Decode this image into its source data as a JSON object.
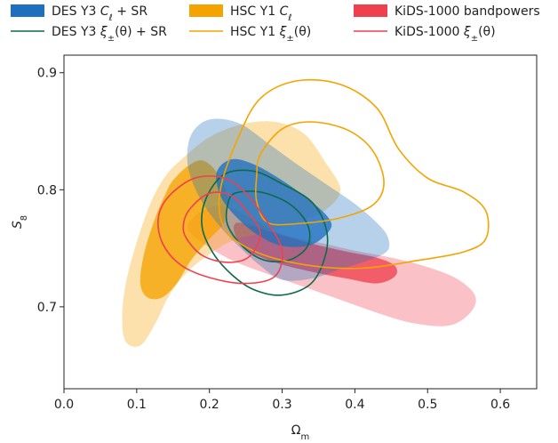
{
  "chart_data": {
    "type": "contour",
    "xlabel": "Ω",
    "xlabel_sub": "m",
    "ylabel": "S",
    "ylabel_sub": "8",
    "xlim": [
      0.0,
      0.65
    ],
    "ylim": [
      0.63,
      0.915
    ],
    "x_ticks": [
      0.0,
      0.1,
      0.2,
      0.3,
      0.4,
      0.5,
      0.6
    ],
    "x_tick_labels": [
      "0.0",
      "0.1",
      "0.2",
      "0.3",
      "0.4",
      "0.5",
      "0.6"
    ],
    "y_ticks": [
      0.7,
      0.8,
      0.9
    ],
    "y_tick_labels": [
      "0.7",
      "0.8",
      "0.9"
    ],
    "grid": false,
    "legend_position": "top",
    "colors": {
      "des": "#1f6fbf",
      "des_line": "#0b6b4a",
      "hsc": "#f5a300",
      "kids": "#ef404f"
    },
    "legend": [
      {
        "style": "filled",
        "color_key": "des",
        "prefix": "DES Y3 ",
        "math": "C",
        "math_sub": "ℓ",
        "suffix": " + SR"
      },
      {
        "style": "filled",
        "color_key": "hsc",
        "prefix": "HSC Y1 ",
        "math": "C",
        "math_sub": "ℓ",
        "suffix": ""
      },
      {
        "style": "filled",
        "color_key": "kids",
        "prefix": "KiDS-1000 bandpowers",
        "math": "",
        "math_sub": "",
        "suffix": ""
      },
      {
        "style": "line",
        "color_key": "des_line",
        "prefix": "DES Y3 ",
        "math": "ξ",
        "math_sub": "±",
        "suffix": "(θ) + SR"
      },
      {
        "style": "line",
        "color_key": "hsc",
        "prefix": "HSC Y1 ",
        "math": "ξ",
        "math_sub": "±",
        "suffix": "(θ)"
      },
      {
        "style": "line",
        "color_key": "kids",
        "prefix": "KiDS-1000 ",
        "math": "ξ",
        "math_sub": "±",
        "suffix": "(θ)"
      }
    ],
    "series": [
      {
        "legend_index": 2,
        "style": "filled",
        "color_key": "kids",
        "level": "95%",
        "contour": [
          [
            0.19,
            0.782
          ],
          [
            0.22,
            0.786
          ],
          [
            0.26,
            0.775
          ],
          [
            0.3,
            0.762
          ],
          [
            0.35,
            0.755
          ],
          [
            0.4,
            0.748
          ],
          [
            0.45,
            0.742
          ],
          [
            0.5,
            0.734
          ],
          [
            0.54,
            0.724
          ],
          [
            0.565,
            0.71
          ],
          [
            0.56,
            0.696
          ],
          [
            0.53,
            0.684
          ],
          [
            0.48,
            0.686
          ],
          [
            0.43,
            0.695
          ],
          [
            0.38,
            0.706
          ],
          [
            0.33,
            0.717
          ],
          [
            0.28,
            0.728
          ],
          [
            0.23,
            0.74
          ],
          [
            0.19,
            0.755
          ],
          [
            0.17,
            0.768
          ]
        ]
      },
      {
        "legend_index": 2,
        "style": "filled",
        "color_key": "kids",
        "level": "68%",
        "contour": [
          [
            0.24,
            0.772
          ],
          [
            0.29,
            0.763
          ],
          [
            0.34,
            0.754
          ],
          [
            0.39,
            0.747
          ],
          [
            0.43,
            0.742
          ],
          [
            0.455,
            0.735
          ],
          [
            0.455,
            0.726
          ],
          [
            0.43,
            0.72
          ],
          [
            0.39,
            0.724
          ],
          [
            0.34,
            0.73
          ],
          [
            0.29,
            0.738
          ],
          [
            0.25,
            0.749
          ],
          [
            0.235,
            0.762
          ]
        ]
      },
      {
        "legend_index": 1,
        "style": "filled",
        "color_key": "hsc",
        "level": "95%",
        "contour": [
          [
            0.16,
            0.825
          ],
          [
            0.2,
            0.845
          ],
          [
            0.245,
            0.856
          ],
          [
            0.29,
            0.858
          ],
          [
            0.33,
            0.848
          ],
          [
            0.36,
            0.823
          ],
          [
            0.38,
            0.8
          ],
          [
            0.36,
            0.783
          ],
          [
            0.32,
            0.772
          ],
          [
            0.27,
            0.763
          ],
          [
            0.23,
            0.756
          ],
          [
            0.2,
            0.745
          ],
          [
            0.17,
            0.73
          ],
          [
            0.145,
            0.71
          ],
          [
            0.125,
            0.685
          ],
          [
            0.105,
            0.667
          ],
          [
            0.085,
            0.67
          ],
          [
            0.08,
            0.69
          ],
          [
            0.085,
            0.72
          ],
          [
            0.1,
            0.755
          ],
          [
            0.12,
            0.79
          ],
          [
            0.14,
            0.812
          ]
        ]
      },
      {
        "legend_index": 1,
        "style": "filled",
        "color_key": "hsc",
        "level": "68%",
        "contour": [
          [
            0.15,
            0.808
          ],
          [
            0.17,
            0.82
          ],
          [
            0.19,
            0.825
          ],
          [
            0.21,
            0.815
          ],
          [
            0.225,
            0.793
          ],
          [
            0.22,
            0.772
          ],
          [
            0.2,
            0.758
          ],
          [
            0.175,
            0.74
          ],
          [
            0.155,
            0.72
          ],
          [
            0.135,
            0.708
          ],
          [
            0.115,
            0.708
          ],
          [
            0.105,
            0.72
          ],
          [
            0.11,
            0.745
          ],
          [
            0.125,
            0.775
          ],
          [
            0.14,
            0.797
          ]
        ]
      },
      {
        "legend_index": 0,
        "style": "filled",
        "color_key": "des",
        "level": "95%",
        "contour": [
          [
            0.175,
            0.847
          ],
          [
            0.2,
            0.86
          ],
          [
            0.24,
            0.857
          ],
          [
            0.28,
            0.84
          ],
          [
            0.32,
            0.822
          ],
          [
            0.36,
            0.805
          ],
          [
            0.4,
            0.788
          ],
          [
            0.43,
            0.772
          ],
          [
            0.445,
            0.76
          ],
          [
            0.445,
            0.748
          ],
          [
            0.42,
            0.74
          ],
          [
            0.38,
            0.732
          ],
          [
            0.34,
            0.724
          ],
          [
            0.3,
            0.723
          ],
          [
            0.27,
            0.735
          ],
          [
            0.24,
            0.752
          ],
          [
            0.21,
            0.772
          ],
          [
            0.185,
            0.795
          ],
          [
            0.17,
            0.822
          ]
        ]
      },
      {
        "legend_index": 0,
        "style": "filled",
        "color_key": "des",
        "level": "68%",
        "contour": [
          [
            0.21,
            0.815
          ],
          [
            0.23,
            0.826
          ],
          [
            0.26,
            0.822
          ],
          [
            0.3,
            0.808
          ],
          [
            0.34,
            0.79
          ],
          [
            0.365,
            0.775
          ],
          [
            0.365,
            0.765
          ],
          [
            0.34,
            0.753
          ],
          [
            0.3,
            0.752
          ],
          [
            0.265,
            0.762
          ],
          [
            0.235,
            0.778
          ],
          [
            0.215,
            0.795
          ]
        ]
      },
      {
        "legend_index": 3,
        "style": "line",
        "color_key": "des_line",
        "level": "95%",
        "contour": [
          [
            0.22,
            0.813
          ],
          [
            0.26,
            0.816
          ],
          [
            0.3,
            0.805
          ],
          [
            0.34,
            0.79
          ],
          [
            0.36,
            0.768
          ],
          [
            0.36,
            0.745
          ],
          [
            0.34,
            0.72
          ],
          [
            0.3,
            0.71
          ],
          [
            0.26,
            0.715
          ],
          [
            0.23,
            0.728
          ],
          [
            0.205,
            0.746
          ],
          [
            0.19,
            0.768
          ],
          [
            0.195,
            0.792
          ]
        ]
      },
      {
        "legend_index": 3,
        "style": "line",
        "color_key": "des_line",
        "level": "68%",
        "contour": [
          [
            0.235,
            0.797
          ],
          [
            0.27,
            0.798
          ],
          [
            0.31,
            0.788
          ],
          [
            0.335,
            0.77
          ],
          [
            0.335,
            0.752
          ],
          [
            0.31,
            0.74
          ],
          [
            0.275,
            0.74
          ],
          [
            0.245,
            0.752
          ],
          [
            0.225,
            0.77
          ],
          [
            0.225,
            0.787
          ]
        ]
      },
      {
        "legend_index": 4,
        "style": "line",
        "color_key": "hsc",
        "level": "95%",
        "contour": [
          [
            0.24,
            0.845
          ],
          [
            0.27,
            0.878
          ],
          [
            0.32,
            0.893
          ],
          [
            0.38,
            0.89
          ],
          [
            0.43,
            0.87
          ],
          [
            0.46,
            0.835
          ],
          [
            0.5,
            0.81
          ],
          [
            0.55,
            0.798
          ],
          [
            0.58,
            0.782
          ],
          [
            0.58,
            0.758
          ],
          [
            0.55,
            0.747
          ],
          [
            0.49,
            0.74
          ],
          [
            0.41,
            0.733
          ],
          [
            0.33,
            0.736
          ],
          [
            0.26,
            0.748
          ],
          [
            0.22,
            0.768
          ],
          [
            0.215,
            0.8
          ]
        ]
      },
      {
        "legend_index": 4,
        "style": "line",
        "color_key": "hsc",
        "level": "68%",
        "contour": [
          [
            0.27,
            0.83
          ],
          [
            0.3,
            0.852
          ],
          [
            0.34,
            0.858
          ],
          [
            0.39,
            0.851
          ],
          [
            0.425,
            0.833
          ],
          [
            0.44,
            0.806
          ],
          [
            0.425,
            0.787
          ],
          [
            0.38,
            0.776
          ],
          [
            0.32,
            0.771
          ],
          [
            0.28,
            0.772
          ],
          [
            0.265,
            0.79
          ],
          [
            0.265,
            0.812
          ]
        ]
      },
      {
        "legend_index": 5,
        "style": "line",
        "color_key": "kids",
        "level": "95%",
        "contour": [
          [
            0.145,
            0.795
          ],
          [
            0.18,
            0.81
          ],
          [
            0.22,
            0.81
          ],
          [
            0.25,
            0.797
          ],
          [
            0.28,
            0.772
          ],
          [
            0.3,
            0.748
          ],
          [
            0.29,
            0.726
          ],
          [
            0.25,
            0.72
          ],
          [
            0.2,
            0.725
          ],
          [
            0.16,
            0.736
          ],
          [
            0.135,
            0.755
          ],
          [
            0.13,
            0.777
          ]
        ]
      },
      {
        "legend_index": 5,
        "style": "line",
        "color_key": "kids",
        "level": "68%",
        "contour": [
          [
            0.175,
            0.785
          ],
          [
            0.2,
            0.797
          ],
          [
            0.23,
            0.795
          ],
          [
            0.255,
            0.779
          ],
          [
            0.27,
            0.762
          ],
          [
            0.255,
            0.743
          ],
          [
            0.225,
            0.738
          ],
          [
            0.19,
            0.744
          ],
          [
            0.167,
            0.76
          ],
          [
            0.165,
            0.773
          ]
        ]
      }
    ]
  }
}
